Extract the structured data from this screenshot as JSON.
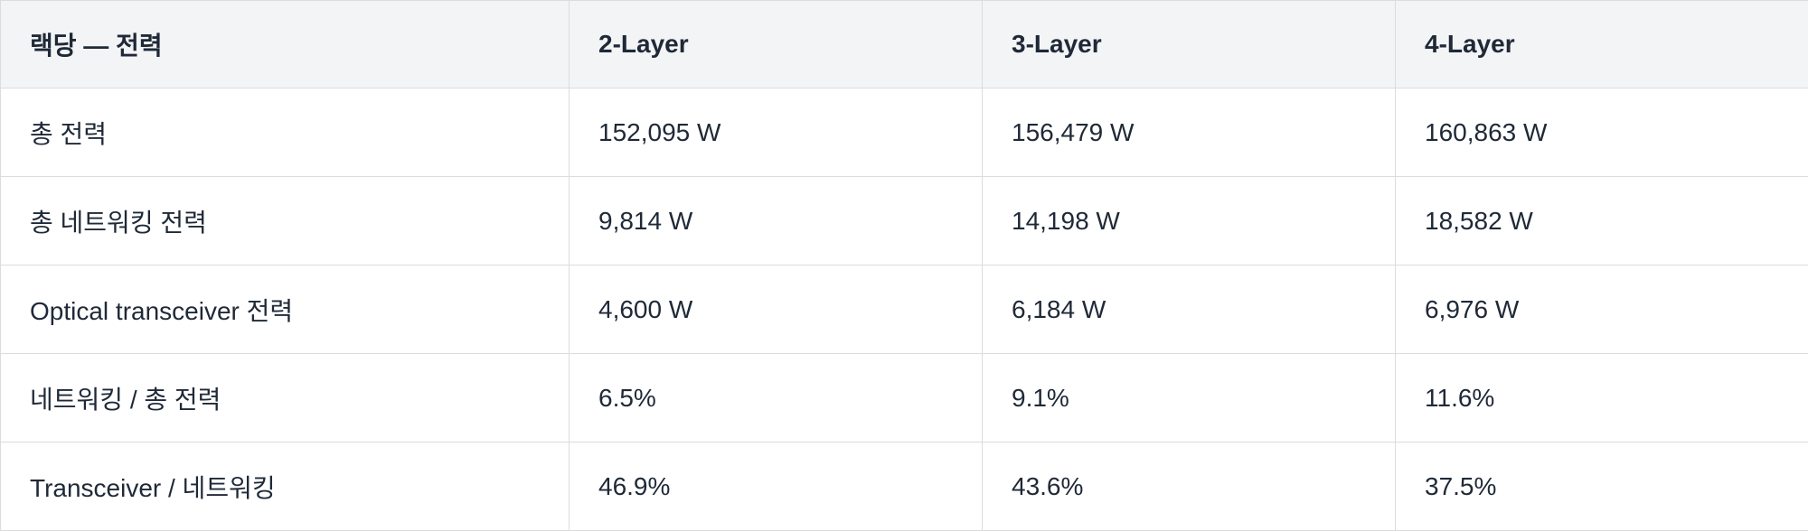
{
  "table": {
    "header": [
      "랙당 — 전력",
      "2-Layer",
      "3-Layer",
      "4-Layer"
    ],
    "rows": [
      [
        "총 전력",
        "152,095 W",
        "156,479 W",
        "160,863 W"
      ],
      [
        "총 네트워킹 전력",
        "9,814 W",
        "14,198 W",
        "18,582 W"
      ],
      [
        "Optical transceiver 전력",
        "4,600 W",
        "6,184 W",
        "6,976 W"
      ],
      [
        "네트워킹 / 총 전력",
        "6.5%",
        "9.1%",
        "11.6%"
      ],
      [
        "Transceiver / 네트워킹",
        "46.9%",
        "43.6%",
        "37.5%"
      ]
    ]
  }
}
